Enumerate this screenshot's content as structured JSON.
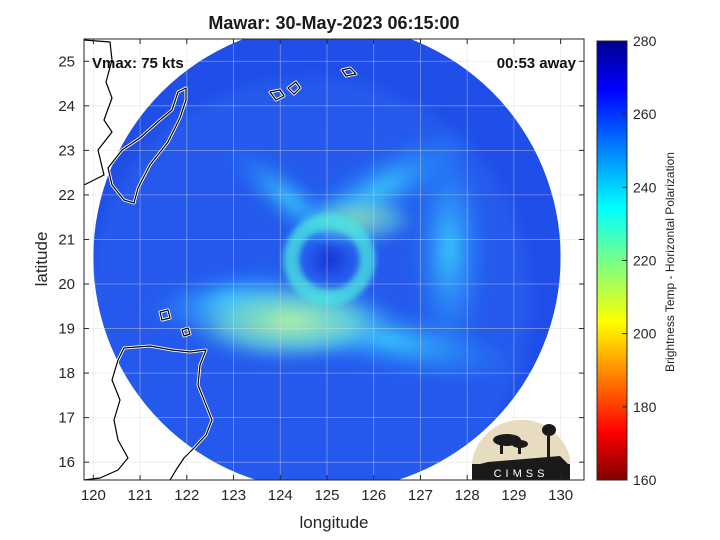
{
  "chart_data": {
    "type": "heatmap",
    "title": "Mawar: 30-May-2023 06:15:00",
    "annotation_left": "Vmax: 75 kts",
    "annotation_right": "00:53 away",
    "xlabel": "longitude",
    "ylabel": "latitude",
    "xlim": [
      119.8,
      130.5
    ],
    "ylim": [
      15.6,
      25.5
    ],
    "xticks": [
      120,
      121,
      122,
      123,
      124,
      125,
      126,
      127,
      128,
      129,
      130
    ],
    "yticks": [
      16,
      17,
      18,
      19,
      20,
      21,
      22,
      23,
      24,
      25
    ],
    "grid": true,
    "colorbar": {
      "label": "Brightness Temp - Horizontal Polarization",
      "range": [
        160,
        280
      ],
      "ticks": [
        160,
        180,
        200,
        220,
        240,
        260,
        280
      ],
      "colormap": "jet",
      "position": "right"
    },
    "swath": {
      "center": [
        125.0,
        20.6
      ],
      "radius_deg": 5.0
    },
    "storm_center": [
      125.05,
      20.55
    ],
    "logo_text": "CIMSS"
  }
}
